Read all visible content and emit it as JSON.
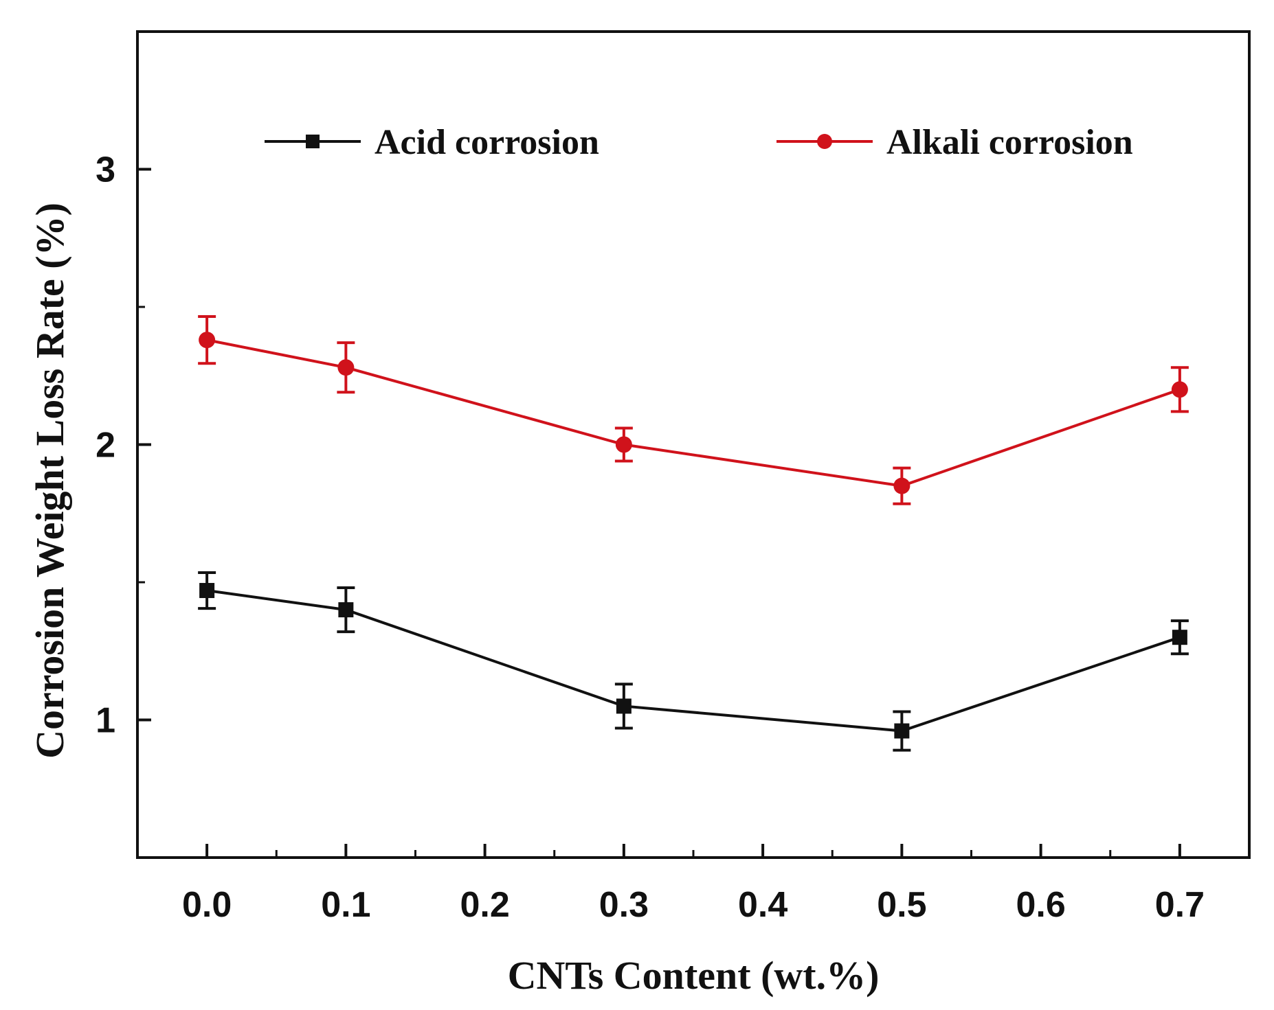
{
  "chart_data": {
    "type": "line",
    "xlabel": "CNTs Content (wt.%)",
    "ylabel": "Corrosion Weight Loss Rate (%)",
    "xlim": [
      -0.05,
      0.75
    ],
    "ylim": [
      0.5,
      3.5
    ],
    "x_ticks": [
      "0.0",
      "0.1",
      "0.2",
      "0.3",
      "0.4",
      "0.5",
      "0.6",
      "0.7"
    ],
    "y_ticks": [
      "1",
      "2",
      "3"
    ],
    "legend_position": "top",
    "grid": false,
    "series": [
      {
        "name": "Acid corrosion",
        "color": "#111111",
        "marker": "square",
        "x": [
          0.0,
          0.1,
          0.3,
          0.5,
          0.7
        ],
        "y": [
          1.47,
          1.4,
          1.05,
          0.96,
          1.3
        ],
        "error": [
          0.065,
          0.08,
          0.08,
          0.07,
          0.06
        ]
      },
      {
        "name": "Alkali corrosion",
        "color": "#d0121b",
        "marker": "circle",
        "x": [
          0.0,
          0.1,
          0.3,
          0.5,
          0.7
        ],
        "y": [
          2.38,
          2.28,
          2.0,
          1.85,
          2.2
        ],
        "error": [
          0.085,
          0.09,
          0.06,
          0.065,
          0.08
        ]
      }
    ]
  }
}
